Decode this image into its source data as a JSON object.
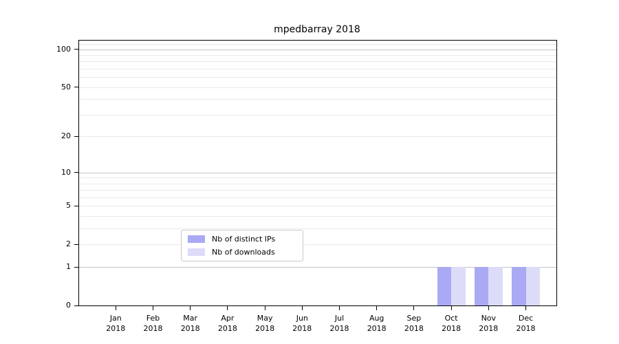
{
  "title": "mpedbarray 2018",
  "chart_data": {
    "type": "bar",
    "title": "mpedbarray 2018",
    "categories": [
      "Jan 2018",
      "Feb 2018",
      "Mar 2018",
      "Apr 2018",
      "May 2018",
      "Jun 2018",
      "Jul 2018",
      "Aug 2018",
      "Sep 2018",
      "Oct 2018",
      "Nov 2018",
      "Dec 2018"
    ],
    "series": [
      {
        "name": "Nb of distinct IPs",
        "color": "#a9a9f4",
        "values": [
          0,
          0,
          0,
          0,
          0,
          0,
          0,
          0,
          0,
          1,
          1,
          1
        ]
      },
      {
        "name": "Nb of downloads",
        "color": "#dcdcf8",
        "values": [
          0,
          0,
          0,
          0,
          0,
          0,
          0,
          0,
          0,
          1,
          1,
          1
        ]
      }
    ],
    "xlabel": "",
    "ylabel": "",
    "y_axis": {
      "scale": "log1p",
      "ticks": [
        0,
        1,
        2,
        5,
        10,
        20,
        50,
        100
      ],
      "max": 117,
      "major_grid": [
        1,
        10,
        100
      ],
      "minor_grid": [
        2,
        3,
        4,
        5,
        6,
        7,
        8,
        9,
        20,
        30,
        40,
        50,
        60,
        70,
        80,
        90,
        110
      ]
    },
    "legend": {
      "position": "bottom-center",
      "entries": [
        "Nb of distinct IPs",
        "Nb of downloads"
      ]
    },
    "grid": "horizontal-only"
  },
  "colors": {
    "bar_distinct_ips": "#a9a9f4",
    "bar_downloads": "#dcdcf8",
    "grid_major": "#c3c3c3",
    "grid_minor": "#e9e9e9",
    "spine": "#000000",
    "legend_border": "#c9c9c9",
    "background": "#ffffff",
    "text": "#000000"
  }
}
